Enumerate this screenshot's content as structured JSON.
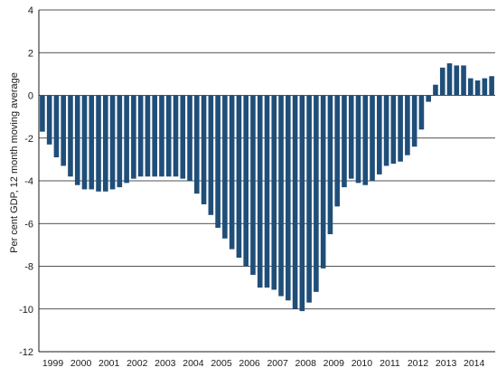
{
  "chart_data": {
    "type": "bar",
    "ylabel": "Per cent GDP, 12 month moving average",
    "xlabel": "",
    "ylim": [
      -12,
      4
    ],
    "yticks": [
      4,
      2,
      0,
      -2,
      -4,
      -6,
      -8,
      -10,
      -12
    ],
    "year_labels": [
      "1999",
      "2000",
      "2001",
      "2002",
      "2003",
      "2004",
      "2005",
      "2006",
      "2007",
      "2008",
      "2009",
      "2010",
      "2011",
      "2012",
      "2013",
      "2014"
    ],
    "bars_per_year": 4,
    "grid": true,
    "bar_color": "#1f4e79",
    "values": [
      -1.7,
      -2.3,
      -2.9,
      -3.3,
      -3.8,
      -4.2,
      -4.4,
      -4.4,
      -4.5,
      -4.5,
      -4.4,
      -4.3,
      -4.1,
      -3.9,
      -3.8,
      -3.8,
      -3.8,
      -3.8,
      -3.8,
      -3.8,
      -3.9,
      -4.0,
      -4.6,
      -5.1,
      -5.6,
      -6.2,
      -6.7,
      -7.2,
      -7.6,
      -8.0,
      -8.4,
      -9.0,
      -9.0,
      -9.1,
      -9.4,
      -9.6,
      -10.0,
      -10.1,
      -9.7,
      -9.2,
      -8.1,
      -6.5,
      -5.2,
      -4.3,
      -3.9,
      -4.1,
      -4.2,
      -4.0,
      -3.7,
      -3.3,
      -3.2,
      -3.1,
      -2.8,
      -2.4,
      -1.6,
      -0.3,
      0.5,
      1.3,
      1.5,
      1.4,
      1.4,
      0.8,
      0.7,
      0.8,
      0.9
    ]
  }
}
